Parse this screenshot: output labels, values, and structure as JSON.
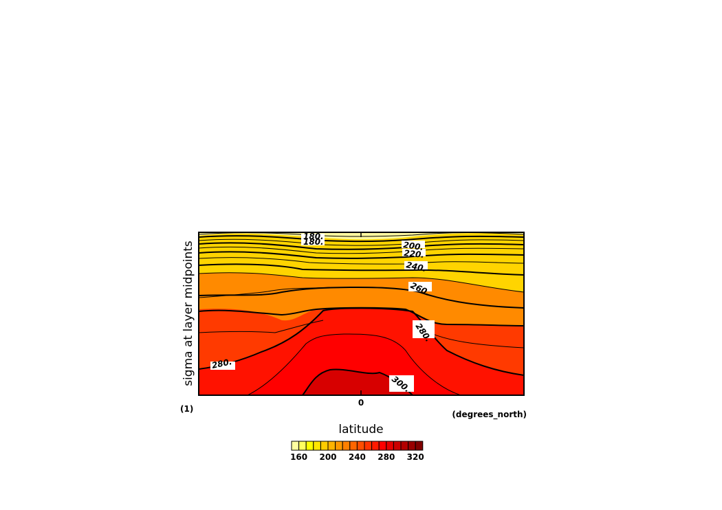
{
  "chart_data": {
    "type": "heatmap",
    "xlabel": "latitude",
    "ylabel": "sigma at layer midpoints",
    "x_units": "(degrees_north)",
    "y_units": "(1)",
    "x_ticks": [
      "0"
    ],
    "contour_labels": [
      "180.",
      "180.",
      "200.",
      "220.",
      "240.",
      "260.",
      "280.",
      "280.",
      "300."
    ],
    "colorbar": {
      "ticks": [
        "160",
        "200",
        "240",
        "280",
        "320"
      ],
      "colors": [
        "#ffffa0",
        "#ffff60",
        "#ffff00",
        "#ffe600",
        "#ffcc00",
        "#ffb300",
        "#ff9900",
        "#ff8000",
        "#ff6600",
        "#ff4d00",
        "#ff3300",
        "#ff1a00",
        "#ff0000",
        "#e60000",
        "#cc0000",
        "#b30000",
        "#990000",
        "#800000"
      ]
    },
    "field_colors": {
      "top": "#fff8a0",
      "upper": "#ffd400",
      "middle": "#ff8a00",
      "lower": "#ff3a00",
      "surface": "#ff1200",
      "core": "#ff0000",
      "warmest": "#d70000"
    }
  }
}
